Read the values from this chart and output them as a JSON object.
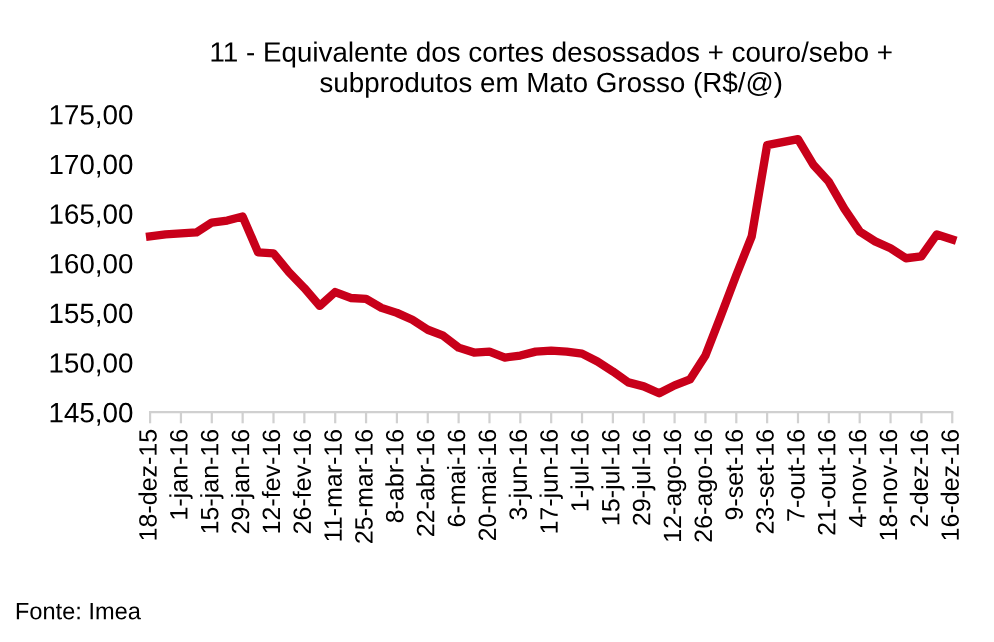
{
  "chart_data": {
    "type": "line",
    "title": "11 - Equivalente dos cortes desossados + couro/sebo +\nsubprodutos em Mato Grosso (R$/@)",
    "categories": [
      "18-dez-15",
      null,
      "1-jan-16",
      null,
      "15-jan-16",
      null,
      "29-jan-16",
      null,
      "12-fev-16",
      null,
      "26-fev-16",
      null,
      "11-mar-16",
      null,
      "25-mar-16",
      null,
      "8-abr-16",
      null,
      "22-abr-16",
      null,
      "6-mai-16",
      null,
      "20-mai-16",
      null,
      "3-jun-16",
      null,
      "17-jun-16",
      null,
      "1-jul-16",
      null,
      "15-jul-16",
      null,
      "29-jul-16",
      null,
      "12-ago-16",
      null,
      "26-ago-16",
      null,
      "9-set-16",
      null,
      "23-set-16",
      null,
      "7-out-16",
      null,
      "21-out-16",
      null,
      "4-nov-16",
      null,
      "18-nov-16",
      null,
      "2-dez-16",
      null,
      "16-dez-16"
    ],
    "series": [
      {
        "color": "#c8001a",
        "values": [
          162.7,
          162.9,
          163.0,
          163.1,
          164.1,
          164.3,
          164.7,
          161.1,
          161.0,
          159.1,
          157.5,
          155.7,
          157.1,
          156.5,
          156.4,
          155.5,
          155.0,
          154.3,
          153.3,
          152.7,
          151.5,
          151.0,
          151.1,
          150.5,
          150.7,
          151.1,
          151.2,
          151.1,
          150.9,
          150.1,
          149.1,
          148.0,
          147.6,
          146.9,
          147.7,
          148.3,
          150.7,
          154.7,
          158.8,
          162.7,
          171.9,
          172.2,
          172.5,
          169.9,
          168.2,
          165.5,
          163.2,
          162.2,
          161.5,
          160.5,
          160.7,
          162.9,
          162.4
        ]
      }
    ],
    "ylim": [
      145,
      175
    ],
    "yticks": [
      {
        "value": 145,
        "label": "145,00"
      },
      {
        "value": 150,
        "label": "150,00"
      },
      {
        "value": 155,
        "label": "155,00"
      },
      {
        "value": 160,
        "label": "160,00"
      },
      {
        "value": 165,
        "label": "165,00"
      },
      {
        "value": 170,
        "label": "170,00"
      },
      {
        "value": 175,
        "label": "175,00"
      }
    ],
    "grid": false,
    "legend": false,
    "marker": "none",
    "line_style": "solid",
    "annotations": [
      "Fonte: Imea"
    ]
  }
}
